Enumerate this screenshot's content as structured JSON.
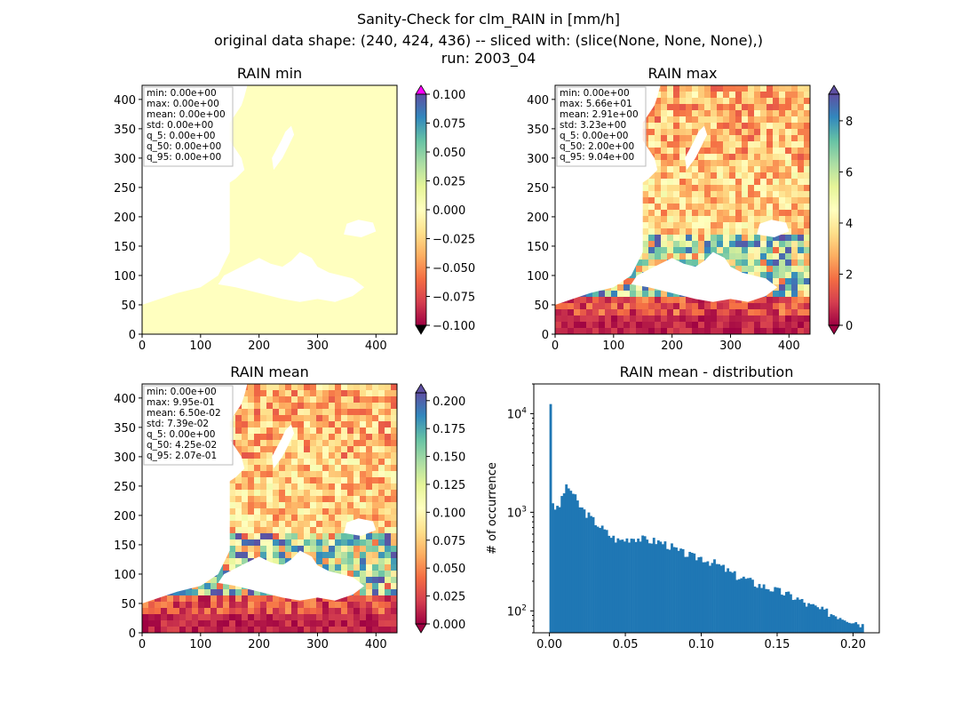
{
  "figure": {
    "title_lines": [
      "Sanity-Check for clm_RAIN in [mm/h]",
      "original data shape: (240, 424, 436) -- sliced with: (slice(None, None, None),)",
      "run: 2003_04"
    ]
  },
  "colors": {
    "map_min": "#ffffbf",
    "hist_bar": "#1f77b4",
    "colorbar_over_min_panel": "#ff00ff",
    "colorbar_under": "#000000",
    "colormap": "Spectral",
    "colormap_stops": [
      "#9e0142",
      "#d53e4f",
      "#f46d43",
      "#fdae61",
      "#fee08b",
      "#ffffbf",
      "#e6f598",
      "#abdda4",
      "#66c2a5",
      "#3288bd",
      "#5e4fa2"
    ]
  },
  "chart_data": [
    {
      "type": "heatmap",
      "title": "RAIN min",
      "xticks": [
        0,
        100,
        200,
        300,
        400
      ],
      "yticks": [
        0,
        50,
        100,
        150,
        200,
        250,
        300,
        350,
        400
      ],
      "xlim": [
        0,
        436
      ],
      "ylim": [
        0,
        424
      ],
      "colorbar": {
        "ticks": [
          "−0.100",
          "−0.075",
          "−0.050",
          "−0.025",
          "0.000",
          "0.025",
          "0.050",
          "0.075",
          "0.100"
        ],
        "range": [
          -0.1,
          0.1
        ],
        "extend": "both"
      },
      "stats": [
        "min: 0.00e+00",
        "max: 0.00e+00",
        "mean: 0.00e+00",
        "std: 0.00e+00",
        "q_5: 0.00e+00",
        "q_50: 0.00e+00",
        "q_95: 0.00e+00"
      ]
    },
    {
      "type": "heatmap",
      "title": "RAIN max",
      "xticks": [
        0,
        100,
        200,
        300,
        400
      ],
      "yticks": [
        0,
        50,
        100,
        150,
        200,
        250,
        300,
        350,
        400
      ],
      "xlim": [
        0,
        436
      ],
      "ylim": [
        0,
        424
      ],
      "colorbar": {
        "ticks": [
          "0",
          "2",
          "4",
          "6",
          "8"
        ],
        "range": [
          0,
          9.04
        ],
        "extend": "both"
      },
      "stats": [
        "min: 0.00e+00",
        "max: 5.66e+01",
        "mean: 2.91e+00",
        "std: 3.23e+00",
        "q_5: 0.00e+00",
        "q_50: 2.00e+00",
        "q_95: 9.04e+00"
      ]
    },
    {
      "type": "heatmap",
      "title": "RAIN mean",
      "xticks": [
        0,
        100,
        200,
        300,
        400
      ],
      "yticks": [
        0,
        50,
        100,
        150,
        200,
        250,
        300,
        350,
        400
      ],
      "xlim": [
        0,
        436
      ],
      "ylim": [
        0,
        424
      ],
      "colorbar": {
        "ticks": [
          "0.000",
          "0.025",
          "0.050",
          "0.075",
          "0.100",
          "0.125",
          "0.150",
          "0.175",
          "0.200"
        ],
        "range": [
          0,
          0.207
        ],
        "extend": "both"
      },
      "stats": [
        "min: 0.00e+00",
        "max: 9.95e-01",
        "mean: 6.50e-02",
        "std: 7.39e-02",
        "q_5: 0.00e+00",
        "q_50: 4.25e-02",
        "q_95: 2.07e-01"
      ]
    },
    {
      "type": "bar",
      "title": "RAIN mean - distribution",
      "ylabel": "# of occurrence",
      "xlabel": "",
      "yscale": "log",
      "xlim": [
        -0.0103,
        0.2173
      ],
      "ylim": [
        60,
        20000
      ],
      "xticks": [
        "0.00",
        "0.05",
        "0.10",
        "0.15",
        "0.20"
      ],
      "yticks": [
        {
          "label": "10",
          "exp": "2",
          "value": 100
        },
        {
          "label": "10",
          "exp": "3",
          "value": 1000
        },
        {
          "label": "10",
          "exp": "4",
          "value": 10000
        }
      ],
      "bin_range": [
        0,
        0.207
      ],
      "x": [
        0.0,
        0.002,
        0.004,
        0.006,
        0.008,
        0.01,
        0.012,
        0.014,
        0.016,
        0.018,
        0.02,
        0.025,
        0.03,
        0.035,
        0.04,
        0.045,
        0.05,
        0.055,
        0.06,
        0.065,
        0.07,
        0.075,
        0.08,
        0.085,
        0.09,
        0.095,
        0.1,
        0.105,
        0.11,
        0.115,
        0.12,
        0.125,
        0.13,
        0.135,
        0.14,
        0.145,
        0.15,
        0.155,
        0.16,
        0.165,
        0.17,
        0.175,
        0.18,
        0.185,
        0.19,
        0.195,
        0.2,
        0.205,
        0.207
      ],
      "values": [
        12500,
        1300,
        1100,
        1050,
        1400,
        1700,
        1800,
        1700,
        1500,
        1300,
        1150,
        950,
        800,
        680,
        580,
        520,
        530,
        560,
        540,
        520,
        510,
        490,
        450,
        400,
        380,
        350,
        350,
        320,
        300,
        270,
        240,
        220,
        210,
        190,
        180,
        170,
        160,
        150,
        140,
        130,
        115,
        110,
        100,
        95,
        90,
        85,
        80,
        75,
        70
      ]
    }
  ]
}
